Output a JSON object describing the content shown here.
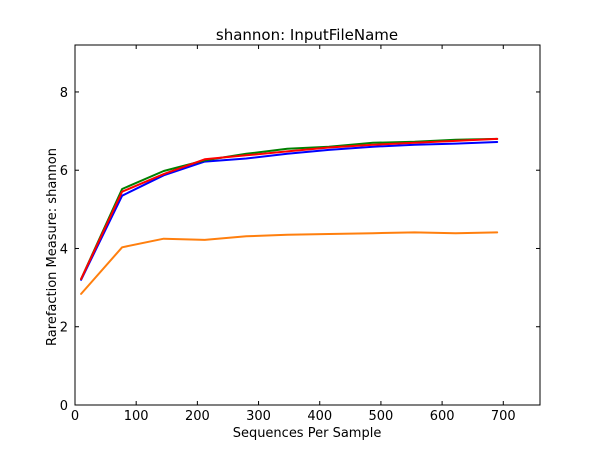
{
  "chart_data": {
    "type": "line",
    "title": "shannon: InputFileName",
    "xlabel": "Sequences Per Sample",
    "ylabel": "Rarefaction Measure: shannon",
    "xlim": [
      0,
      760
    ],
    "ylim": [
      0,
      9.2
    ],
    "xticks": [
      0,
      100,
      200,
      300,
      400,
      500,
      600,
      700
    ],
    "yticks": [
      0,
      2,
      4,
      6,
      8
    ],
    "grid": false,
    "x": [
      10,
      77,
      145,
      212,
      280,
      347,
      415,
      487,
      555,
      622,
      690
    ],
    "series": [
      {
        "color": "#0000ff",
        "values": [
          3.2,
          5.35,
          5.87,
          6.22,
          6.3,
          6.42,
          6.52,
          6.6,
          6.65,
          6.68,
          6.72
        ]
      },
      {
        "color": "#008000",
        "values": [
          3.22,
          5.52,
          5.98,
          6.25,
          6.42,
          6.55,
          6.6,
          6.7,
          6.73,
          6.78,
          6.8
        ]
      },
      {
        "color": "#ff0000",
        "values": [
          3.22,
          5.45,
          5.9,
          6.28,
          6.38,
          6.48,
          6.58,
          6.65,
          6.7,
          6.75,
          6.8
        ]
      },
      {
        "color": "#ff7f0e",
        "values": [
          2.84,
          4.03,
          4.25,
          4.22,
          4.31,
          4.35,
          4.37,
          4.39,
          4.41,
          4.39,
          4.41
        ]
      }
    ]
  }
}
